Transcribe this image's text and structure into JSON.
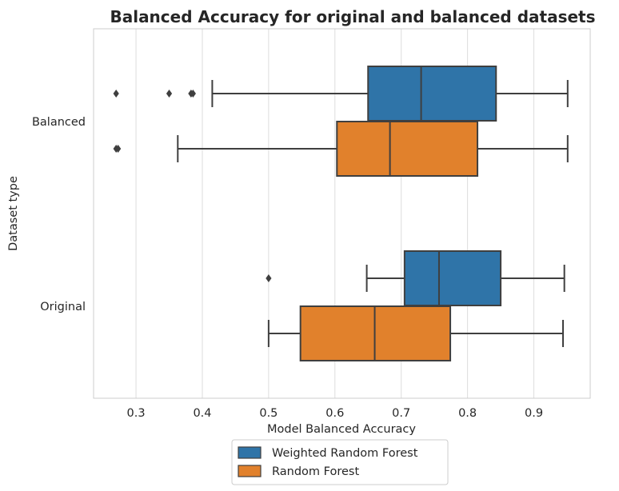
{
  "chart_data": {
    "type": "boxplot",
    "orientation": "horizontal",
    "title": "Balanced Accuracy for original and balanced datasets",
    "xlabel": "Model Balanced Accuracy",
    "ylabel": "Dataset type",
    "xlim": [
      0.236,
      0.985
    ],
    "xticks": [
      0.3,
      0.4,
      0.5,
      0.6,
      0.7,
      0.8,
      0.9
    ],
    "xtick_labels": [
      "0.3",
      "0.4",
      "0.5",
      "0.6",
      "0.7",
      "0.8",
      "0.9"
    ],
    "categories": [
      "Balanced",
      "Original"
    ],
    "grid": "vertical",
    "legend_position": "below",
    "series": [
      {
        "name": "Weighted Random Forest",
        "color": "#2f74a8",
        "boxes": [
          {
            "category": "Balanced",
            "whisker_low": 0.415,
            "q1": 0.65,
            "median": 0.73,
            "q3": 0.843,
            "whisker_high": 0.951,
            "outliers": [
              0.27,
              0.35,
              0.383,
              0.386
            ]
          },
          {
            "category": "Original",
            "whisker_low": 0.648,
            "q1": 0.705,
            "median": 0.757,
            "q3": 0.85,
            "whisker_high": 0.946,
            "outliers": [
              0.5
            ]
          }
        ]
      },
      {
        "name": "Random Forest",
        "color": "#e1812c",
        "boxes": [
          {
            "category": "Balanced",
            "whisker_low": 0.363,
            "q1": 0.603,
            "median": 0.683,
            "q3": 0.815,
            "whisker_high": 0.951,
            "outliers": [
              0.27,
              0.273
            ]
          },
          {
            "category": "Original",
            "whisker_low": 0.5,
            "q1": 0.548,
            "median": 0.66,
            "q3": 0.774,
            "whisker_high": 0.944,
            "outliers": []
          }
        ]
      }
    ]
  }
}
